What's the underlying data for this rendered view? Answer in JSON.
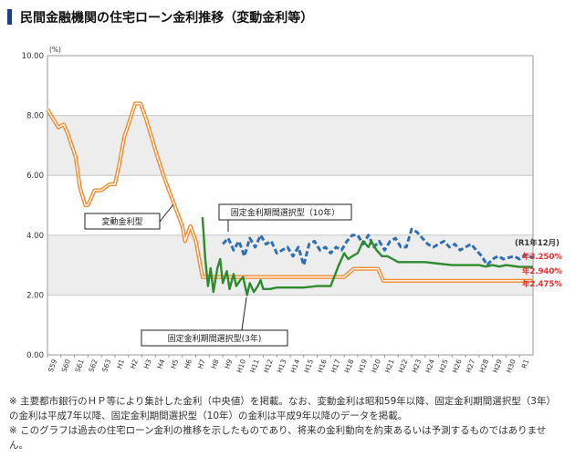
{
  "page": {
    "title": "民間金融機関の住宅ローン金利推移（変動金利等）"
  },
  "chart_data": {
    "type": "line",
    "yunit": "(%)",
    "ylim": [
      0,
      10
    ],
    "yticks": [
      "0.00",
      "2.00",
      "4.00",
      "6.00",
      "8.00",
      "10.00"
    ],
    "x_start": 1984,
    "x_end": 2020,
    "xticks": [
      "S59",
      "S60",
      "S61",
      "S62",
      "S63",
      "H1",
      "H2",
      "H3",
      "H4",
      "H5",
      "H6",
      "H7",
      "H8",
      "H9",
      "H10",
      "H11",
      "H12",
      "H13",
      "H14",
      "H15",
      "H16",
      "H17",
      "H18",
      "H19",
      "H20",
      "H21",
      "H22",
      "H23",
      "H24",
      "H25",
      "H26",
      "H27",
      "H28",
      "H29",
      "H30",
      "R1"
    ],
    "grid": true,
    "series": [
      {
        "name": "変動金利型",
        "color": "#f08a2c",
        "style": "double",
        "points": [
          [
            1984.0,
            8.2
          ],
          [
            1984.4,
            7.9
          ],
          [
            1984.8,
            7.6
          ],
          [
            1985.2,
            7.7
          ],
          [
            1985.5,
            7.4
          ],
          [
            1985.8,
            7.0
          ],
          [
            1986.1,
            6.6
          ],
          [
            1986.4,
            5.6
          ],
          [
            1986.8,
            5.0
          ],
          [
            1987.0,
            5.0
          ],
          [
            1987.5,
            5.5
          ],
          [
            1988.0,
            5.5
          ],
          [
            1988.6,
            5.7
          ],
          [
            1989.0,
            5.7
          ],
          [
            1989.3,
            6.3
          ],
          [
            1989.7,
            7.3
          ],
          [
            1990.0,
            7.7
          ],
          [
            1990.5,
            8.4
          ],
          [
            1990.9,
            8.4
          ],
          [
            1991.3,
            7.9
          ],
          [
            1991.7,
            7.3
          ],
          [
            1992.1,
            6.7
          ],
          [
            1992.6,
            6.0
          ],
          [
            1993.0,
            5.5
          ],
          [
            1993.5,
            4.9
          ],
          [
            1994.0,
            4.3
          ],
          [
            1994.2,
            3.8
          ],
          [
            1994.6,
            4.3
          ],
          [
            1995.0,
            3.8
          ],
          [
            1995.5,
            2.6
          ],
          [
            1996.0,
            2.6
          ],
          [
            2006.0,
            2.6
          ],
          [
            2006.7,
            2.875
          ],
          [
            2008.5,
            2.875
          ],
          [
            2008.9,
            2.475
          ],
          [
            2020.0,
            2.475
          ]
        ]
      },
      {
        "name": "固定金利期間選択型（10年）",
        "color": "#2f6fb6",
        "style": "dashed",
        "points": [
          [
            1997.0,
            3.7
          ],
          [
            1997.4,
            3.9
          ],
          [
            1997.8,
            3.5
          ],
          [
            1998.2,
            3.8
          ],
          [
            1998.6,
            3.3
          ],
          [
            1999.0,
            3.9
          ],
          [
            1999.4,
            3.6
          ],
          [
            1999.8,
            4.0
          ],
          [
            2000.2,
            3.7
          ],
          [
            2000.6,
            3.8
          ],
          [
            2001.0,
            3.4
          ],
          [
            2001.4,
            3.5
          ],
          [
            2001.8,
            3.6
          ],
          [
            2002.2,
            3.3
          ],
          [
            2002.6,
            3.6
          ],
          [
            2003.0,
            3.0
          ],
          [
            2003.4,
            3.7
          ],
          [
            2003.8,
            3.8
          ],
          [
            2004.2,
            3.5
          ],
          [
            2004.6,
            3.6
          ],
          [
            2005.0,
            3.4
          ],
          [
            2005.4,
            3.6
          ],
          [
            2005.8,
            3.5
          ],
          [
            2006.2,
            3.8
          ],
          [
            2006.6,
            4.0
          ],
          [
            2007.0,
            4.0
          ],
          [
            2007.4,
            3.7
          ],
          [
            2007.8,
            4.0
          ],
          [
            2008.2,
            3.6
          ],
          [
            2008.6,
            3.8
          ],
          [
            2009.0,
            3.5
          ],
          [
            2009.4,
            3.8
          ],
          [
            2009.8,
            3.9
          ],
          [
            2010.2,
            3.6
          ],
          [
            2010.6,
            3.6
          ],
          [
            2011.0,
            4.2
          ],
          [
            2011.4,
            4.1
          ],
          [
            2011.8,
            3.9
          ],
          [
            2012.2,
            3.7
          ],
          [
            2012.6,
            3.6
          ],
          [
            2013.0,
            3.7
          ],
          [
            2013.4,
            3.8
          ],
          [
            2013.8,
            3.6
          ],
          [
            2014.2,
            3.7
          ],
          [
            2014.6,
            3.5
          ],
          [
            2015.0,
            3.6
          ],
          [
            2015.4,
            3.7
          ],
          [
            2015.8,
            3.5
          ],
          [
            2016.2,
            3.3
          ],
          [
            2016.6,
            3.0
          ],
          [
            2017.0,
            3.2
          ],
          [
            2017.4,
            3.3
          ],
          [
            2017.8,
            3.2
          ],
          [
            2018.2,
            3.25
          ],
          [
            2018.6,
            3.3
          ],
          [
            2019.0,
            3.2
          ],
          [
            2019.5,
            3.35
          ],
          [
            2020.0,
            3.25
          ]
        ]
      },
      {
        "name": "固定金利期間選択型(3年)",
        "color": "#2e8b2e",
        "style": "solid",
        "points": [
          [
            1995.5,
            4.6
          ],
          [
            1995.7,
            3.2
          ],
          [
            1995.9,
            2.3
          ],
          [
            1996.1,
            2.9
          ],
          [
            1996.3,
            2.1
          ],
          [
            1996.6,
            2.9
          ],
          [
            1996.8,
            3.2
          ],
          [
            1997.0,
            2.4
          ],
          [
            1997.3,
            2.8
          ],
          [
            1997.5,
            2.2
          ],
          [
            1997.8,
            2.7
          ],
          [
            1998.0,
            2.3
          ],
          [
            1998.3,
            2.5
          ],
          [
            1998.5,
            2.6
          ],
          [
            1998.8,
            2.0
          ],
          [
            1999.0,
            2.4
          ],
          [
            1999.3,
            2.1
          ],
          [
            1999.6,
            2.3
          ],
          [
            1999.8,
            2.5
          ],
          [
            2000.0,
            2.2
          ],
          [
            2000.5,
            2.2
          ],
          [
            2001.0,
            2.25
          ],
          [
            2003.0,
            2.25
          ],
          [
            2004.0,
            2.3
          ],
          [
            2005.0,
            2.3
          ],
          [
            2005.6,
            3.0
          ],
          [
            2006.0,
            3.4
          ],
          [
            2006.3,
            3.2
          ],
          [
            2006.6,
            3.3
          ],
          [
            2007.0,
            3.4
          ],
          [
            2007.4,
            3.8
          ],
          [
            2007.8,
            3.6
          ],
          [
            2008.0,
            3.8
          ],
          [
            2008.4,
            3.5
          ],
          [
            2008.8,
            3.3
          ],
          [
            2009.2,
            3.3
          ],
          [
            2009.6,
            3.2
          ],
          [
            2010.0,
            3.1
          ],
          [
            2011.0,
            3.1
          ],
          [
            2012.0,
            3.1
          ],
          [
            2013.0,
            3.05
          ],
          [
            2014.0,
            3.0
          ],
          [
            2015.0,
            3.0
          ],
          [
            2016.0,
            3.0
          ],
          [
            2016.5,
            2.95
          ],
          [
            2017.0,
            3.0
          ],
          [
            2017.5,
            2.95
          ],
          [
            2018.0,
            3.0
          ],
          [
            2019.0,
            2.94
          ],
          [
            2020.0,
            2.94
          ]
        ]
      }
    ],
    "annotations": {
      "label_hendo": "変動金利型",
      "label_fixed10": "固定金利期間選択型（10年）",
      "label_fixed3": "固定金利期間選択型(3年)",
      "end_period": "(R1年12月)",
      "end_fixed10": "年3.250%",
      "end_fixed3": "年2.940%",
      "end_hendo": "年2.475%"
    }
  },
  "notes": [
    "※ 主要都市銀行のＨＰ等により集計した金利（中央値）を掲載。なお、変動金利は昭和59年以降、固定金利期間選択型（3年）",
    "の金利は平成7年以降、固定金利期間選択型（10年）の金利は平成9年以降のデータを掲載。",
    "※ このグラフは過去の住宅ローン金利の推移を示したものであり、将来の金利動向を約束あるいは予測するものではありませ",
    "ん。"
  ]
}
